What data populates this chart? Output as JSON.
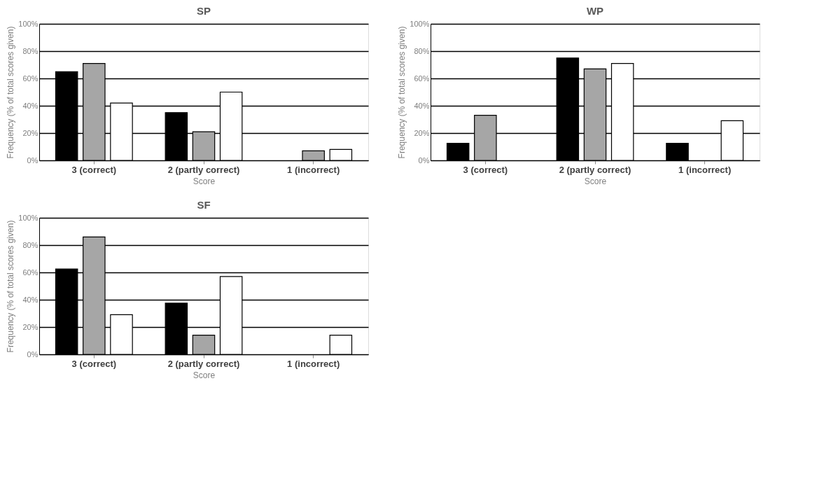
{
  "chart_data": [
    {
      "type": "bar",
      "title": "SP",
      "xlabel": "Score",
      "ylabel": "Frequency (% of total scores given)",
      "categories": [
        "3 (correct)",
        "2 (partly correct)",
        "1 (incorrect)"
      ],
      "series": [
        {
          "color": "#000000",
          "values": [
            65,
            35,
            0
          ]
        },
        {
          "color": "#a6a6a6",
          "values": [
            71,
            21,
            7
          ]
        },
        {
          "color": "#ffffff",
          "values": [
            42,
            50,
            8
          ]
        }
      ],
      "ylim": [
        0,
        100
      ],
      "yticks": [
        {
          "value": 0,
          "label": "0%"
        },
        {
          "value": 20,
          "label": "20%"
        },
        {
          "value": 40,
          "label": "40%"
        },
        {
          "value": 60,
          "label": "60%"
        },
        {
          "value": 80,
          "label": "80%"
        },
        {
          "value": 100,
          "label": "100%"
        }
      ],
      "grid": "y",
      "legend": false
    },
    {
      "type": "bar",
      "title": "WP",
      "xlabel": "Score",
      "ylabel": "Frequency (% of total scores given)",
      "categories": [
        "3 (correct)",
        "2 (partly correct)",
        "1 (incorrect)"
      ],
      "series": [
        {
          "color": "#000000",
          "values": [
            12.5,
            75,
            12.5
          ]
        },
        {
          "color": "#a6a6a6",
          "values": [
            33,
            67,
            0
          ]
        },
        {
          "color": "#ffffff",
          "values": [
            0,
            71,
            29
          ]
        }
      ],
      "ylim": [
        0,
        100
      ],
      "yticks": [
        {
          "value": 0,
          "label": "0%"
        },
        {
          "value": 20,
          "label": "20%"
        },
        {
          "value": 40,
          "label": "40%"
        },
        {
          "value": 60,
          "label": "60%"
        },
        {
          "value": 80,
          "label": "80%"
        },
        {
          "value": 100,
          "label": "100%"
        }
      ],
      "grid": "y",
      "legend": false
    },
    {
      "type": "bar",
      "title": "SF",
      "xlabel": "Score",
      "ylabel": "Frequency (% of total scores given)",
      "categories": [
        "3 (correct)",
        "2 (partly correct)",
        "1 (incorrect)"
      ],
      "series": [
        {
          "color": "#000000",
          "values": [
            62.5,
            37.5,
            0
          ]
        },
        {
          "color": "#a6a6a6",
          "values": [
            86,
            14,
            0
          ]
        },
        {
          "color": "#ffffff",
          "values": [
            29,
            57,
            14
          ]
        }
      ],
      "ylim": [
        0,
        100
      ],
      "yticks": [
        {
          "value": 0,
          "label": "0%"
        },
        {
          "value": 20,
          "label": "20%"
        },
        {
          "value": 40,
          "label": "40%"
        },
        {
          "value": 60,
          "label": "60%"
        },
        {
          "value": 80,
          "label": "80%"
        },
        {
          "value": 100,
          "label": "100%"
        }
      ],
      "grid": "y",
      "legend": false
    }
  ]
}
